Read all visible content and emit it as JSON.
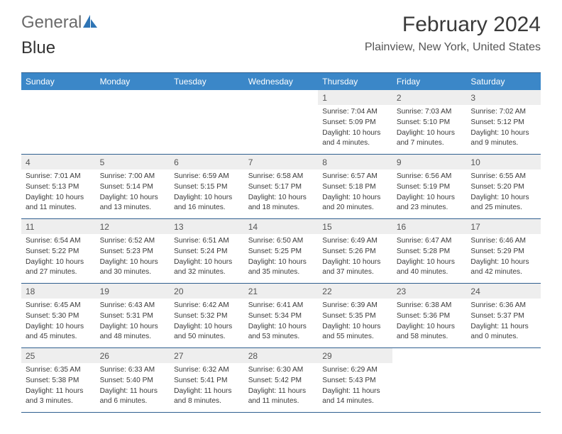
{
  "logo": {
    "text1": "General",
    "text2": "Blue"
  },
  "header": {
    "month_title": "February 2024",
    "location": "Plainview, New York, United States"
  },
  "colors": {
    "header_bg": "#3b87c8",
    "header_text": "#ffffff",
    "daynum_bg": "#eeeeee",
    "border": "#2f5f8f",
    "logo_gray": "#6a6a6a",
    "logo_blue": "#2f75b5"
  },
  "daynames": [
    "Sunday",
    "Monday",
    "Tuesday",
    "Wednesday",
    "Thursday",
    "Friday",
    "Saturday"
  ],
  "weeks": [
    [
      {
        "empty": true
      },
      {
        "empty": true
      },
      {
        "empty": true
      },
      {
        "empty": true
      },
      {
        "day": "1",
        "sunrise": "Sunrise: 7:04 AM",
        "sunset": "Sunset: 5:09 PM",
        "daylight1": "Daylight: 10 hours",
        "daylight2": "and 4 minutes."
      },
      {
        "day": "2",
        "sunrise": "Sunrise: 7:03 AM",
        "sunset": "Sunset: 5:10 PM",
        "daylight1": "Daylight: 10 hours",
        "daylight2": "and 7 minutes."
      },
      {
        "day": "3",
        "sunrise": "Sunrise: 7:02 AM",
        "sunset": "Sunset: 5:12 PM",
        "daylight1": "Daylight: 10 hours",
        "daylight2": "and 9 minutes."
      }
    ],
    [
      {
        "day": "4",
        "sunrise": "Sunrise: 7:01 AM",
        "sunset": "Sunset: 5:13 PM",
        "daylight1": "Daylight: 10 hours",
        "daylight2": "and 11 minutes."
      },
      {
        "day": "5",
        "sunrise": "Sunrise: 7:00 AM",
        "sunset": "Sunset: 5:14 PM",
        "daylight1": "Daylight: 10 hours",
        "daylight2": "and 13 minutes."
      },
      {
        "day": "6",
        "sunrise": "Sunrise: 6:59 AM",
        "sunset": "Sunset: 5:15 PM",
        "daylight1": "Daylight: 10 hours",
        "daylight2": "and 16 minutes."
      },
      {
        "day": "7",
        "sunrise": "Sunrise: 6:58 AM",
        "sunset": "Sunset: 5:17 PM",
        "daylight1": "Daylight: 10 hours",
        "daylight2": "and 18 minutes."
      },
      {
        "day": "8",
        "sunrise": "Sunrise: 6:57 AM",
        "sunset": "Sunset: 5:18 PM",
        "daylight1": "Daylight: 10 hours",
        "daylight2": "and 20 minutes."
      },
      {
        "day": "9",
        "sunrise": "Sunrise: 6:56 AM",
        "sunset": "Sunset: 5:19 PM",
        "daylight1": "Daylight: 10 hours",
        "daylight2": "and 23 minutes."
      },
      {
        "day": "10",
        "sunrise": "Sunrise: 6:55 AM",
        "sunset": "Sunset: 5:20 PM",
        "daylight1": "Daylight: 10 hours",
        "daylight2": "and 25 minutes."
      }
    ],
    [
      {
        "day": "11",
        "sunrise": "Sunrise: 6:54 AM",
        "sunset": "Sunset: 5:22 PM",
        "daylight1": "Daylight: 10 hours",
        "daylight2": "and 27 minutes."
      },
      {
        "day": "12",
        "sunrise": "Sunrise: 6:52 AM",
        "sunset": "Sunset: 5:23 PM",
        "daylight1": "Daylight: 10 hours",
        "daylight2": "and 30 minutes."
      },
      {
        "day": "13",
        "sunrise": "Sunrise: 6:51 AM",
        "sunset": "Sunset: 5:24 PM",
        "daylight1": "Daylight: 10 hours",
        "daylight2": "and 32 minutes."
      },
      {
        "day": "14",
        "sunrise": "Sunrise: 6:50 AM",
        "sunset": "Sunset: 5:25 PM",
        "daylight1": "Daylight: 10 hours",
        "daylight2": "and 35 minutes."
      },
      {
        "day": "15",
        "sunrise": "Sunrise: 6:49 AM",
        "sunset": "Sunset: 5:26 PM",
        "daylight1": "Daylight: 10 hours",
        "daylight2": "and 37 minutes."
      },
      {
        "day": "16",
        "sunrise": "Sunrise: 6:47 AM",
        "sunset": "Sunset: 5:28 PM",
        "daylight1": "Daylight: 10 hours",
        "daylight2": "and 40 minutes."
      },
      {
        "day": "17",
        "sunrise": "Sunrise: 6:46 AM",
        "sunset": "Sunset: 5:29 PM",
        "daylight1": "Daylight: 10 hours",
        "daylight2": "and 42 minutes."
      }
    ],
    [
      {
        "day": "18",
        "sunrise": "Sunrise: 6:45 AM",
        "sunset": "Sunset: 5:30 PM",
        "daylight1": "Daylight: 10 hours",
        "daylight2": "and 45 minutes."
      },
      {
        "day": "19",
        "sunrise": "Sunrise: 6:43 AM",
        "sunset": "Sunset: 5:31 PM",
        "daylight1": "Daylight: 10 hours",
        "daylight2": "and 48 minutes."
      },
      {
        "day": "20",
        "sunrise": "Sunrise: 6:42 AM",
        "sunset": "Sunset: 5:32 PM",
        "daylight1": "Daylight: 10 hours",
        "daylight2": "and 50 minutes."
      },
      {
        "day": "21",
        "sunrise": "Sunrise: 6:41 AM",
        "sunset": "Sunset: 5:34 PM",
        "daylight1": "Daylight: 10 hours",
        "daylight2": "and 53 minutes."
      },
      {
        "day": "22",
        "sunrise": "Sunrise: 6:39 AM",
        "sunset": "Sunset: 5:35 PM",
        "daylight1": "Daylight: 10 hours",
        "daylight2": "and 55 minutes."
      },
      {
        "day": "23",
        "sunrise": "Sunrise: 6:38 AM",
        "sunset": "Sunset: 5:36 PM",
        "daylight1": "Daylight: 10 hours",
        "daylight2": "and 58 minutes."
      },
      {
        "day": "24",
        "sunrise": "Sunrise: 6:36 AM",
        "sunset": "Sunset: 5:37 PM",
        "daylight1": "Daylight: 11 hours",
        "daylight2": "and 0 minutes."
      }
    ],
    [
      {
        "day": "25",
        "sunrise": "Sunrise: 6:35 AM",
        "sunset": "Sunset: 5:38 PM",
        "daylight1": "Daylight: 11 hours",
        "daylight2": "and 3 minutes."
      },
      {
        "day": "26",
        "sunrise": "Sunrise: 6:33 AM",
        "sunset": "Sunset: 5:40 PM",
        "daylight1": "Daylight: 11 hours",
        "daylight2": "and 6 minutes."
      },
      {
        "day": "27",
        "sunrise": "Sunrise: 6:32 AM",
        "sunset": "Sunset: 5:41 PM",
        "daylight1": "Daylight: 11 hours",
        "daylight2": "and 8 minutes."
      },
      {
        "day": "28",
        "sunrise": "Sunrise: 6:30 AM",
        "sunset": "Sunset: 5:42 PM",
        "daylight1": "Daylight: 11 hours",
        "daylight2": "and 11 minutes."
      },
      {
        "day": "29",
        "sunrise": "Sunrise: 6:29 AM",
        "sunset": "Sunset: 5:43 PM",
        "daylight1": "Daylight: 11 hours",
        "daylight2": "and 14 minutes."
      },
      {
        "empty": true
      },
      {
        "empty": true
      }
    ]
  ]
}
